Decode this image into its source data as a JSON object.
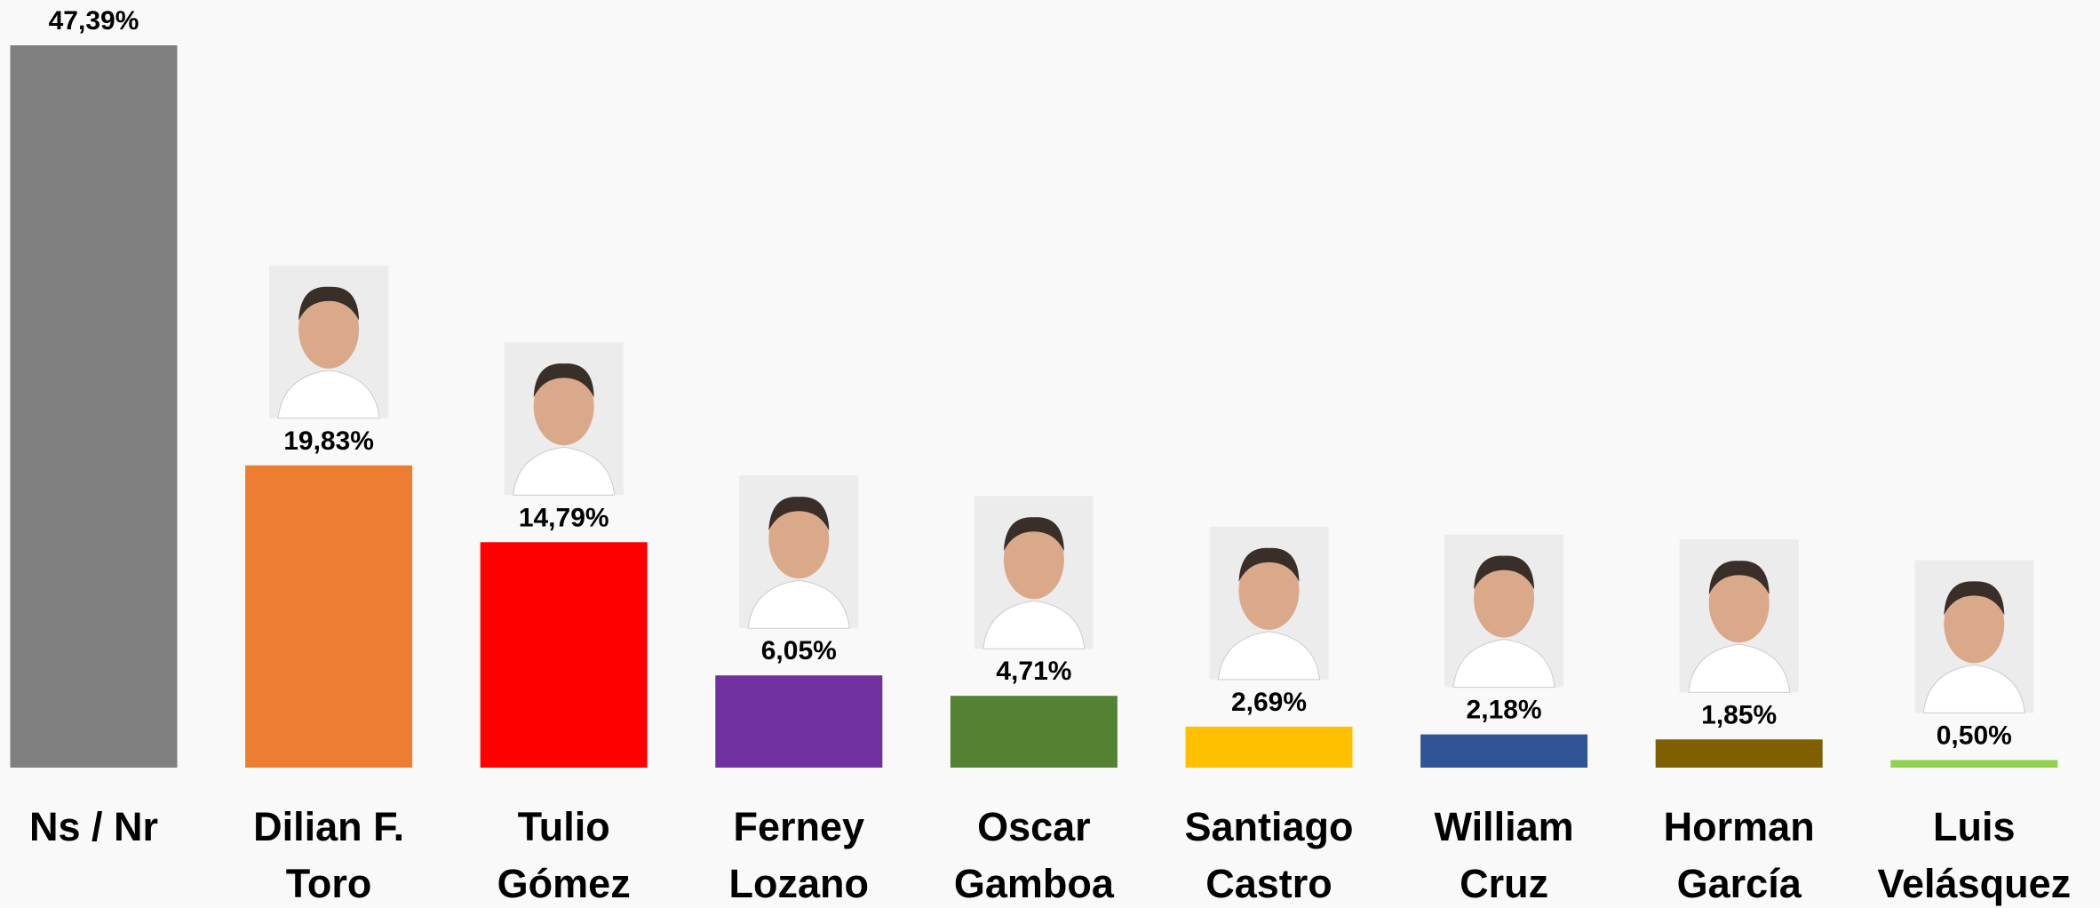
{
  "chart_data": {
    "type": "bar",
    "categories": [
      [
        "Ns / Nr"
      ],
      [
        "Dilian F.",
        "Toro"
      ],
      [
        "Tulio",
        "Gómez"
      ],
      [
        "Ferney",
        "Lozano"
      ],
      [
        "Oscar",
        "Gamboa"
      ],
      [
        "Santiago",
        "Castro"
      ],
      [
        "William",
        "Cruz"
      ],
      [
        "Horman",
        "García"
      ],
      [
        "Luis",
        "Velásquez"
      ]
    ],
    "values": [
      47.39,
      19.83,
      14.79,
      6.05,
      4.71,
      2.69,
      2.18,
      1.85,
      0.5
    ],
    "value_labels": [
      "47,39%",
      "19,83%",
      "14,79%",
      "6,05%",
      "4,71%",
      "2,69%",
      "2,18%",
      "1,85%",
      "0,50%"
    ],
    "colors": [
      "#808080",
      "#ed7d31",
      "#ff0000",
      "#7030a0",
      "#548235",
      "#ffc000",
      "#2f5597",
      "#7f6000",
      "#92d050"
    ]
  }
}
